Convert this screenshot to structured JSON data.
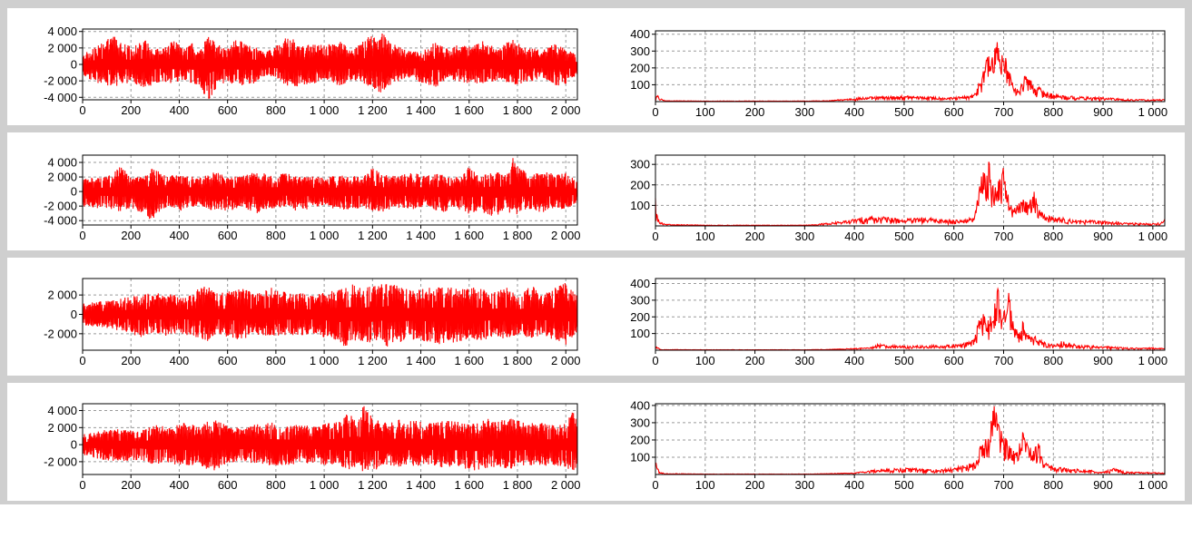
{
  "chart_data": [
    {
      "type": "line",
      "panel": "time-signal-row1",
      "xlim": [
        0,
        2048
      ],
      "ylim": [
        -4300,
        4300
      ],
      "xticks": [
        0,
        200,
        400,
        600,
        800,
        1000,
        1200,
        1400,
        1600,
        1800,
        2000
      ],
      "xtick_labels": [
        "0",
        "200",
        "400",
        "600",
        "800",
        "1 000",
        "1 200",
        "1 400",
        "1 600",
        "1 800",
        "2 000"
      ],
      "yticks": [
        -4000,
        -2000,
        0,
        2000,
        4000
      ],
      "ytick_labels": [
        "-4 000",
        "-2 000",
        "0",
        "2 000",
        "4 000"
      ],
      "grid": true,
      "color": "#ff0000",
      "envelope_x": [
        0,
        60,
        130,
        160,
        200,
        260,
        320,
        380,
        420,
        450,
        480,
        520,
        560,
        600,
        640,
        700,
        760,
        800,
        860,
        900,
        960,
        1000,
        1060,
        1120,
        1180,
        1240,
        1280,
        1340,
        1400,
        1460,
        1520,
        1560,
        1600,
        1660,
        1720,
        1780,
        1800,
        1860,
        1900,
        1960,
        2000,
        2048
      ],
      "envelope_max": [
        1300,
        2200,
        3700,
        2600,
        2200,
        2900,
        1700,
        3000,
        1900,
        2800,
        1700,
        3600,
        2700,
        2000,
        3200,
        2500,
        1500,
        2400,
        3700,
        2200,
        2500,
        2300,
        3000,
        1700,
        3400,
        4000,
        2600,
        1800,
        1500,
        2800,
        1900,
        2600,
        2200,
        2900,
        1800,
        3300,
        2600,
        2000,
        1700,
        2600,
        1800,
        1200
      ],
      "envelope_min": [
        -1300,
        -2300,
        -2800,
        -2600,
        -2100,
        -3000,
        -2100,
        -2400,
        -1800,
        -2600,
        -2500,
        -4500,
        -2500,
        -2200,
        -2500,
        -2700,
        -1400,
        -1800,
        -2800,
        -2600,
        -2400,
        -1700,
        -2800,
        -1800,
        -2800,
        -3600,
        -2400,
        -1600,
        -2200,
        -2900,
        -1700,
        -2200,
        -2300,
        -2400,
        -1900,
        -2600,
        -2500,
        -2100,
        -1600,
        -2600,
        -2400,
        -1200
      ]
    },
    {
      "type": "line",
      "panel": "spectrum-row1",
      "xlim": [
        0,
        1024
      ],
      "ylim": [
        0,
        420
      ],
      "xticks": [
        0,
        100,
        200,
        300,
        400,
        500,
        600,
        700,
        800,
        900,
        1000
      ],
      "xtick_labels": [
        "0",
        "100",
        "200",
        "300",
        "400",
        "500",
        "600",
        "700",
        "800",
        "900",
        "1 000"
      ],
      "yticks": [
        100,
        200,
        300,
        400
      ],
      "ytick_labels": [
        "100",
        "200",
        "300",
        "400"
      ],
      "grid": true,
      "color": "#ff0000",
      "envelope_x": [
        0,
        3,
        8,
        20,
        100,
        200,
        300,
        350,
        400,
        430,
        500,
        540,
        600,
        640,
        650,
        660,
        670,
        680,
        690,
        695,
        700,
        705,
        710,
        720,
        730,
        740,
        750,
        760,
        770,
        780,
        800,
        850,
        900,
        950,
        1000,
        1020,
        1024
      ],
      "envelope_max": [
        5,
        45,
        20,
        6,
        4,
        4,
        4,
        6,
        22,
        28,
        35,
        30,
        25,
        40,
        120,
        240,
        280,
        300,
        390,
        250,
        440,
        240,
        220,
        90,
        70,
        150,
        160,
        100,
        90,
        70,
        45,
        30,
        25,
        15,
        12,
        15,
        10
      ],
      "envelope_min": [
        0,
        10,
        4,
        2,
        1,
        1,
        1,
        2,
        5,
        6,
        8,
        8,
        6,
        8,
        30,
        60,
        90,
        100,
        150,
        90,
        160,
        100,
        80,
        30,
        20,
        40,
        50,
        30,
        20,
        15,
        10,
        6,
        4,
        2,
        2,
        3,
        2
      ]
    },
    {
      "type": "line",
      "panel": "time-signal-row2",
      "xlim": [
        0,
        2048
      ],
      "ylim": [
        -4600,
        5000
      ],
      "xticks": [
        0,
        200,
        400,
        600,
        800,
        1000,
        1200,
        1400,
        1600,
        1800,
        2000
      ],
      "xtick_labels": [
        "0",
        "200",
        "400",
        "600",
        "800",
        "1 000",
        "1 200",
        "1 400",
        "1 600",
        "1 800",
        "2 000"
      ],
      "yticks": [
        -4000,
        -2000,
        0,
        2000,
        4000
      ],
      "ytick_labels": [
        "-4 000",
        "-2 000",
        "0",
        "2 000",
        "4 000"
      ],
      "grid": true,
      "color": "#ff0000",
      "envelope_x": [
        0,
        60,
        120,
        160,
        200,
        260,
        280,
        300,
        340,
        400,
        440,
        480,
        520,
        560,
        600,
        660,
        720,
        780,
        840,
        880,
        960,
        1000,
        1060,
        1120,
        1160,
        1200,
        1240,
        1300,
        1360,
        1420,
        1480,
        1540,
        1580,
        1600,
        1640,
        1700,
        1760,
        1780,
        1840,
        1900,
        1960,
        2000,
        2048
      ],
      "envelope_max": [
        1800,
        2000,
        2300,
        3600,
        1800,
        2200,
        3100,
        3700,
        2300,
        2200,
        2400,
        1900,
        2400,
        2800,
        2000,
        2200,
        2700,
        2300,
        2600,
        2100,
        2100,
        2000,
        2200,
        2200,
        2000,
        3300,
        2400,
        2100,
        2700,
        2200,
        2500,
        2000,
        2600,
        3600,
        2200,
        2800,
        2600,
        5000,
        2300,
        2800,
        2400,
        2600,
        1500
      ],
      "envelope_min": [
        -2100,
        -2300,
        -2500,
        -3000,
        -2200,
        -3200,
        -4500,
        -3500,
        -2200,
        -2700,
        -2300,
        -1900,
        -2500,
        -2600,
        -2700,
        -2300,
        -3000,
        -2400,
        -2200,
        -2800,
        -2400,
        -2200,
        -2800,
        -2300,
        -2400,
        -2700,
        -2800,
        -2200,
        -2500,
        -2000,
        -3100,
        -2400,
        -2700,
        -3400,
        -2500,
        -3700,
        -2400,
        -3800,
        -2300,
        -2900,
        -2500,
        -2600,
        -1500
      ]
    },
    {
      "type": "line",
      "panel": "spectrum-row2",
      "xlim": [
        0,
        1024
      ],
      "ylim": [
        0,
        345
      ],
      "xticks": [
        0,
        100,
        200,
        300,
        400,
        500,
        600,
        700,
        800,
        900,
        1000
      ],
      "xtick_labels": [
        "0",
        "100",
        "200",
        "300",
        "400",
        "500",
        "600",
        "700",
        "800",
        "900",
        "1 000"
      ],
      "yticks": [
        100,
        200,
        300
      ],
      "ytick_labels": [
        "100",
        "200",
        "300"
      ],
      "grid": true,
      "color": "#ff0000",
      "envelope_x": [
        0,
        3,
        8,
        20,
        100,
        200,
        300,
        330,
        380,
        430,
        500,
        540,
        600,
        640,
        650,
        660,
        670,
        680,
        690,
        695,
        700,
        705,
        710,
        720,
        730,
        740,
        750,
        760,
        770,
        780,
        800,
        850,
        900,
        950,
        1000,
        1020,
        1024
      ],
      "envelope_max": [
        150,
        60,
        20,
        8,
        4,
        4,
        4,
        10,
        25,
        50,
        35,
        40,
        30,
        40,
        180,
        300,
        320,
        200,
        260,
        200,
        340,
        180,
        160,
        80,
        120,
        130,
        120,
        180,
        90,
        60,
        45,
        30,
        25,
        15,
        12,
        20,
        35
      ],
      "envelope_min": [
        10,
        8,
        3,
        2,
        1,
        1,
        1,
        3,
        6,
        8,
        8,
        8,
        8,
        10,
        50,
        90,
        100,
        60,
        80,
        60,
        140,
        70,
        50,
        30,
        40,
        50,
        40,
        70,
        30,
        15,
        10,
        6,
        4,
        2,
        2,
        4,
        5
      ]
    },
    {
      "type": "line",
      "panel": "time-signal-row3",
      "xlim": [
        0,
        2048
      ],
      "ylim": [
        -3700,
        3700
      ],
      "xticks": [
        0,
        200,
        400,
        600,
        800,
        1000,
        1200,
        1400,
        1600,
        1800,
        2000
      ],
      "xtick_labels": [
        "0",
        "200",
        "400",
        "600",
        "800",
        "1 000",
        "1 200",
        "1 400",
        "1 600",
        "1 800",
        "2 000"
      ],
      "yticks": [
        -2000,
        0,
        2000
      ],
      "ytick_labels": [
        "-2 000",
        "0",
        "2 000"
      ],
      "grid": true,
      "color": "#ff0000",
      "envelope_x": [
        0,
        60,
        120,
        180,
        240,
        300,
        360,
        420,
        460,
        520,
        560,
        600,
        660,
        720,
        780,
        840,
        900,
        960,
        1000,
        1040,
        1080,
        1120,
        1160,
        1200,
        1240,
        1260,
        1300,
        1360,
        1420,
        1480,
        1520,
        1560,
        1600,
        1660,
        1700,
        1760,
        1800,
        1860,
        1900,
        1960,
        2000,
        2048
      ],
      "envelope_max": [
        1100,
        1300,
        1500,
        1800,
        2100,
        2200,
        2100,
        1900,
        2400,
        3100,
        2100,
        2400,
        2700,
        2100,
        2800,
        2300,
        2200,
        2000,
        2300,
        2600,
        2800,
        3100,
        2600,
        3300,
        3100,
        3500,
        3000,
        2500,
        2700,
        2900,
        2900,
        2600,
        2800,
        2700,
        2300,
        2800,
        2000,
        3000,
        2100,
        2800,
        3300,
        1900
      ],
      "envelope_min": [
        -1100,
        -1300,
        -1500,
        -1900,
        -2400,
        -2000,
        -2300,
        -2000,
        -2500,
        -2800,
        -2000,
        -2500,
        -2600,
        -2100,
        -2300,
        -2200,
        -2200,
        -2100,
        -2500,
        -2600,
        -3500,
        -2700,
        -2800,
        -3100,
        -2600,
        -3500,
        -3000,
        -2600,
        -2800,
        -3100,
        -2700,
        -3400,
        -2600,
        -2700,
        -2400,
        -2600,
        -2100,
        -2500,
        -2300,
        -2700,
        -3200,
        -1900
      ]
    },
    {
      "type": "line",
      "panel": "spectrum-row3",
      "xlim": [
        0,
        1024
      ],
      "ylim": [
        0,
        430
      ],
      "xticks": [
        0,
        100,
        200,
        300,
        400,
        500,
        600,
        700,
        800,
        900,
        1000
      ],
      "xtick_labels": [
        "0",
        "100",
        "200",
        "300",
        "400",
        "500",
        "600",
        "700",
        "800",
        "900",
        "1 000"
      ],
      "yticks": [
        100,
        200,
        300,
        400
      ],
      "ytick_labels": [
        "100",
        "200",
        "300",
        "400"
      ],
      "grid": true,
      "color": "#ff0000",
      "envelope_x": [
        0,
        3,
        8,
        20,
        100,
        200,
        300,
        350,
        400,
        430,
        450,
        500,
        560,
        600,
        640,
        650,
        660,
        670,
        680,
        690,
        695,
        700,
        705,
        710,
        720,
        730,
        740,
        750,
        760,
        770,
        780,
        800,
        820,
        850,
        900,
        950,
        1000,
        1024
      ],
      "envelope_max": [
        30,
        25,
        8,
        4,
        3,
        3,
        3,
        5,
        12,
        15,
        40,
        25,
        30,
        35,
        60,
        180,
        220,
        180,
        250,
        400,
        270,
        320,
        200,
        430,
        140,
        120,
        180,
        110,
        90,
        70,
        50,
        35,
        60,
        30,
        25,
        15,
        15,
        12
      ],
      "envelope_min": [
        2,
        6,
        2,
        1,
        1,
        1,
        1,
        2,
        4,
        4,
        8,
        6,
        7,
        8,
        15,
        60,
        80,
        60,
        100,
        150,
        100,
        120,
        70,
        140,
        45,
        40,
        60,
        40,
        30,
        20,
        15,
        8,
        10,
        6,
        4,
        3,
        3,
        2
      ]
    },
    {
      "type": "line",
      "panel": "time-signal-row4",
      "xlim": [
        0,
        2048
      ],
      "ylim": [
        -3500,
        4800
      ],
      "xticks": [
        0,
        200,
        400,
        600,
        800,
        1000,
        1200,
        1400,
        1600,
        1800,
        2000
      ],
      "xtick_labels": [
        "0",
        "200",
        "400",
        "600",
        "800",
        "1 000",
        "1 200",
        "1 400",
        "1 600",
        "1 800",
        "2 000"
      ],
      "yticks": [
        -2000,
        0,
        2000,
        4000
      ],
      "ytick_labels": [
        "-2 000",
        "0",
        "2 000",
        "4 000"
      ],
      "grid": true,
      "color": "#ff0000",
      "envelope_x": [
        0,
        60,
        120,
        180,
        240,
        300,
        360,
        420,
        480,
        540,
        600,
        660,
        720,
        780,
        840,
        900,
        960,
        1000,
        1060,
        1100,
        1140,
        1160,
        1200,
        1260,
        1320,
        1380,
        1440,
        1500,
        1560,
        1600,
        1660,
        1720,
        1780,
        1840,
        1900,
        1960,
        2000,
        2030,
        2048
      ],
      "envelope_max": [
        1200,
        1500,
        2000,
        1700,
        1600,
        2400,
        2000,
        2600,
        2200,
        3000,
        2200,
        2000,
        2400,
        2600,
        2400,
        2300,
        2200,
        2500,
        2700,
        3800,
        2500,
        4800,
        3100,
        2600,
        3000,
        2800,
        2500,
        2900,
        2700,
        2400,
        3200,
        2800,
        3100,
        2500,
        2600,
        2400,
        2700,
        4100,
        3000
      ],
      "envelope_min": [
        -1200,
        -1700,
        -2000,
        -1900,
        -1800,
        -2400,
        -2200,
        -2600,
        -2400,
        -3200,
        -2200,
        -2100,
        -2200,
        -2500,
        -2400,
        -2300,
        -2100,
        -2500,
        -2300,
        -3100,
        -2400,
        -3400,
        -3100,
        -2400,
        -2700,
        -2500,
        -2400,
        -2800,
        -2600,
        -3100,
        -2900,
        -2600,
        -2900,
        -2400,
        -2500,
        -2500,
        -2700,
        -3300,
        -2700
      ]
    },
    {
      "type": "line",
      "panel": "spectrum-row4",
      "xlim": [
        0,
        1024
      ],
      "ylim": [
        0,
        410
      ],
      "xticks": [
        0,
        100,
        200,
        300,
        400,
        500,
        600,
        700,
        800,
        900,
        1000
      ],
      "xtick_labels": [
        "0",
        "100",
        "200",
        "300",
        "400",
        "500",
        "600",
        "700",
        "800",
        "900",
        "1 000"
      ],
      "yticks": [
        100,
        200,
        300,
        400
      ],
      "ytick_labels": [
        "100",
        "200",
        "300",
        "400"
      ],
      "grid": true,
      "color": "#ff0000",
      "envelope_x": [
        0,
        3,
        8,
        20,
        100,
        200,
        300,
        350,
        400,
        430,
        450,
        500,
        560,
        600,
        640,
        650,
        660,
        670,
        680,
        685,
        690,
        700,
        710,
        720,
        730,
        740,
        750,
        760,
        770,
        780,
        800,
        850,
        900,
        920,
        950,
        1000,
        1024
      ],
      "envelope_max": [
        130,
        50,
        15,
        6,
        3,
        3,
        3,
        6,
        10,
        25,
        30,
        40,
        30,
        40,
        70,
        150,
        200,
        230,
        400,
        380,
        300,
        220,
        200,
        150,
        180,
        280,
        170,
        140,
        200,
        80,
        45,
        30,
        20,
        40,
        15,
        12,
        10
      ],
      "envelope_min": [
        8,
        10,
        3,
        1,
        1,
        1,
        1,
        2,
        4,
        6,
        8,
        8,
        7,
        8,
        15,
        50,
        70,
        80,
        140,
        130,
        100,
        70,
        60,
        50,
        60,
        90,
        55,
        45,
        60,
        25,
        10,
        6,
        4,
        6,
        3,
        3,
        2
      ]
    }
  ]
}
